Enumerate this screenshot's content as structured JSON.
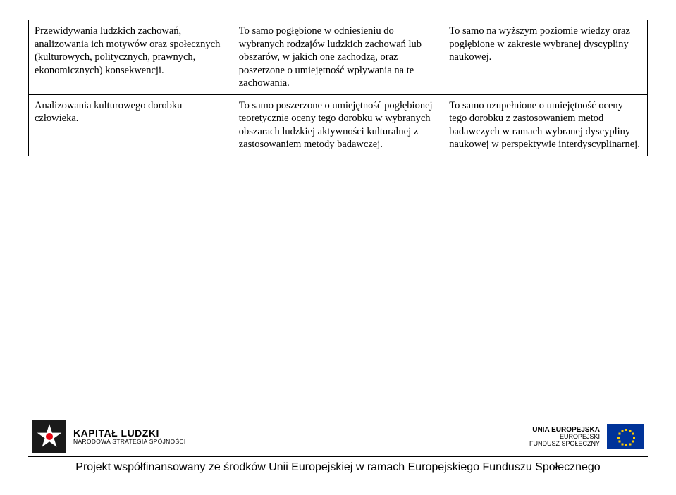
{
  "table": {
    "rows": [
      {
        "c0": "Przewidywania ludzkich zachowań, analizowania ich motywów oraz społecznych (kulturowych, politycznych, prawnych, ekonomicznych) konsekwencji.",
        "c1": "To samo pogłębione w odniesieniu do wybranych rodzajów ludzkich zachowań lub obszarów, w jakich one zachodzą, oraz poszerzone o umiejętność wpływania na te zachowania.",
        "c2": "To samo na wyższym poziomie wiedzy oraz pogłębione w zakresie wybranej dyscypliny naukowej."
      },
      {
        "c0": "Analizowania kulturowego dorobku człowieka.",
        "c1": "To samo poszerzone o umiejętność pogłębionej teoretycznie oceny tego dorobku w wybranych obszarach ludzkiej aktywności kulturalnej z zastosowaniem metody badawczej.",
        "c2": "To samo uzupełnione o umiejętność oceny tego dorobku z zastosowaniem metod badawczych w ramach wybranej dyscypliny naukowej w perspektywie interdyscyplinarnej."
      }
    ]
  },
  "footer": {
    "left_logo": {
      "line1": "KAPITAŁ LUDZKI",
      "line2": "NARODOWA STRATEGIA SPÓJNOŚCI"
    },
    "right_logo": {
      "line1": "UNIA EUROPEJSKA",
      "line2": "EUROPEJSKI",
      "line3": "FUNDUSZ SPOŁECZNY"
    },
    "caption": "Projekt współfinansowany ze środków Unii Europejskiej w ramach Europejskiego Funduszu Społecznego"
  },
  "colors": {
    "text": "#000000",
    "border": "#000000",
    "background": "#ffffff",
    "eu_blue": "#003399",
    "eu_gold": "#ffcc00",
    "kl_red": "#e30613",
    "kl_black": "#1a1a1a"
  }
}
